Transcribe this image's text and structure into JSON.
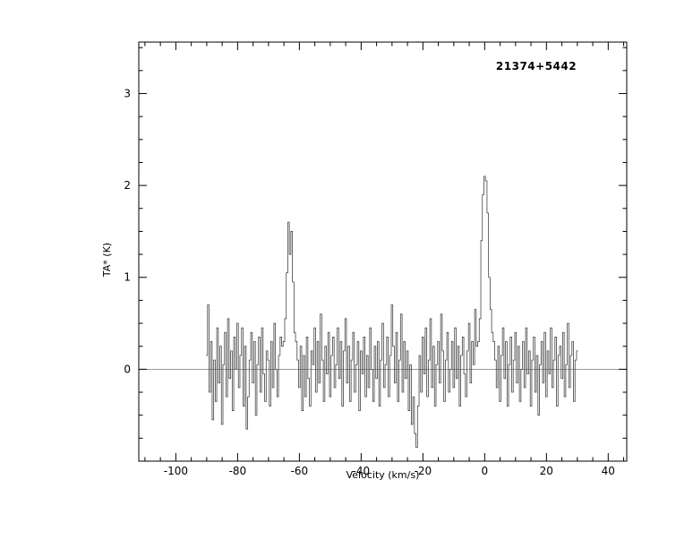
{
  "page": {
    "background": "#ffffff",
    "frame_color": "#000000",
    "text_color": "#000000"
  },
  "chart_data": {
    "type": "line",
    "mode": "histogram-step",
    "title": "21374+5442",
    "xlabel": "Velocity (km/s)",
    "ylabel": "TA* (K)",
    "xlim": [
      -112,
      46
    ],
    "ylim": [
      -1.0,
      3.56
    ],
    "x_ticks_major": [
      -100,
      -80,
      -60,
      -40,
      -20,
      0,
      20,
      40
    ],
    "x_tick_labels": [
      "-100",
      "-80",
      "-60",
      "-40",
      "-20",
      "0",
      "20",
      "40"
    ],
    "x_minor_step": 5,
    "y_ticks_major": [
      0,
      1,
      2,
      3
    ],
    "y_tick_labels": [
      "0",
      "1",
      "2",
      "3"
    ],
    "y_minor_step": 0.25,
    "zero_line_y": 0,
    "line_color": "#444444",
    "zero_line_color": "#777777",
    "grid": "off",
    "legend": "none",
    "features": {
      "peak_1": {
        "velocity_kms": -63,
        "peak_ta_k": 1.6
      },
      "peak_2": {
        "velocity_kms": 0,
        "peak_ta_k": 2.1
      },
      "noise_rms_k": 0.3
    },
    "series": [
      {
        "name": "spectrum",
        "x_start": -90,
        "dx": 0.5,
        "values": [
          0.15,
          0.7,
          -0.25,
          0.3,
          -0.55,
          0.1,
          -0.35,
          0.45,
          -0.15,
          0.25,
          -0.6,
          0.05,
          0.4,
          -0.3,
          0.55,
          -0.1,
          0.2,
          -0.45,
          0.35,
          0.0,
          0.5,
          -0.2,
          0.15,
          0.45,
          -0.4,
          0.25,
          -0.65,
          -0.3,
          0.1,
          0.4,
          -0.15,
          0.3,
          -0.5,
          0.05,
          0.35,
          -0.25,
          0.45,
          -0.05,
          -0.35,
          0.2,
          0.1,
          -0.4,
          0.3,
          -0.2,
          0.5,
          0.0,
          -0.3,
          0.15,
          0.35,
          0.25,
          0.3,
          0.55,
          1.05,
          1.6,
          1.25,
          1.5,
          0.95,
          0.4,
          0.3,
          0.1,
          -0.2,
          0.25,
          -0.45,
          0.15,
          -0.3,
          0.35,
          -0.1,
          -0.4,
          0.2,
          0.05,
          0.45,
          -0.25,
          0.3,
          -0.15,
          0.6,
          0.1,
          -0.35,
          0.25,
          -0.05,
          0.4,
          -0.3,
          0.15,
          0.35,
          -0.2,
          0.05,
          0.45,
          -0.1,
          0.3,
          -0.4,
          0.2,
          0.55,
          -0.15,
          0.25,
          -0.35,
          0.1,
          0.4,
          -0.25,
          0.05,
          0.3,
          -0.45,
          0.2,
          -0.05,
          0.35,
          -0.3,
          0.15,
          -0.2,
          0.45,
          0.0,
          -0.35,
          0.25,
          -0.1,
          0.3,
          -0.4,
          0.1,
          0.5,
          -0.2,
          0.05,
          0.35,
          -0.3,
          0.15,
          0.7,
          0.25,
          -0.15,
          0.4,
          -0.35,
          0.1,
          0.6,
          -0.25,
          0.3,
          -0.1,
          0.2,
          -0.45,
          0.05,
          -0.6,
          -0.3,
          -0.7,
          -0.85,
          -0.4,
          0.15,
          -0.25,
          0.35,
          -0.05,
          0.45,
          -0.3,
          0.1,
          0.55,
          -0.2,
          0.25,
          -0.4,
          0.05,
          0.3,
          -0.15,
          0.6,
          0.2,
          -0.35,
          0.1,
          0.4,
          -0.25,
          0.0,
          0.3,
          -0.2,
          0.45,
          -0.1,
          0.25,
          -0.4,
          0.15,
          0.35,
          -0.05,
          -0.3,
          0.2,
          0.5,
          -0.15,
          0.3,
          0.05,
          0.65,
          0.25,
          0.3,
          0.55,
          1.4,
          1.9,
          2.1,
          2.05,
          1.7,
          1.0,
          0.65,
          0.4,
          0.3,
          0.1,
          -0.2,
          0.25,
          -0.35,
          0.15,
          0.45,
          -0.1,
          0.3,
          -0.4,
          0.05,
          0.35,
          -0.25,
          0.1,
          0.4,
          -0.15,
          0.25,
          -0.35,
          0.0,
          0.3,
          -0.2,
          0.45,
          -0.05,
          0.2,
          -0.4,
          0.1,
          0.35,
          -0.25,
          0.15,
          -0.5,
          0.05,
          0.3,
          -0.15,
          0.4,
          -0.3,
          0.2,
          -0.05,
          0.45,
          -0.2,
          0.1,
          0.35,
          -0.4,
          0.15,
          0.25,
          -0.1,
          0.4,
          -0.3,
          0.05,
          0.5,
          -0.2,
          0.15,
          0.3,
          -0.35,
          0.1,
          0.2
        ]
      }
    ]
  }
}
